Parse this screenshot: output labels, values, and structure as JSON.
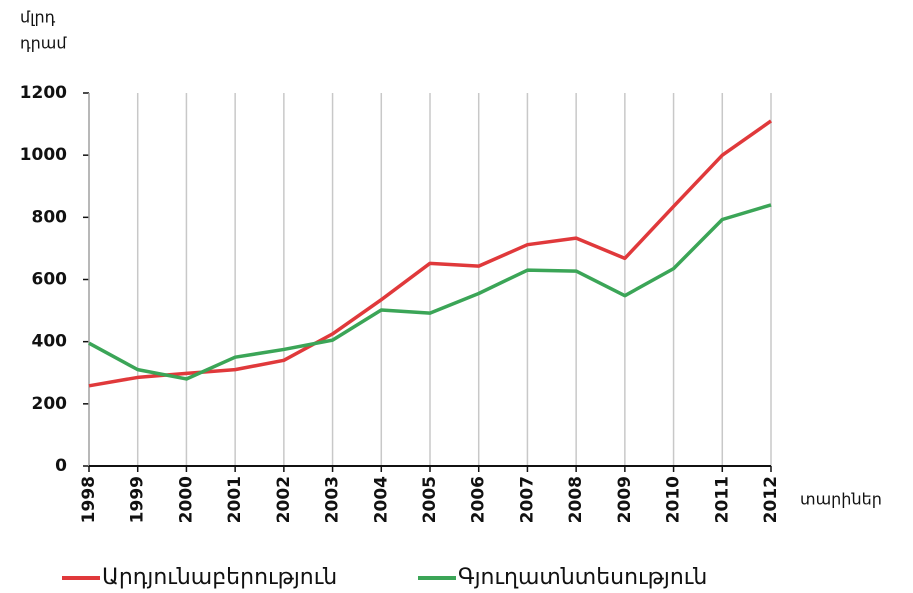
{
  "chart_data": {
    "type": "line",
    "y_label": [
      "մլրդ",
      "դրամ"
    ],
    "x_label": "տարիներ",
    "categories": [
      "1998",
      "1999",
      "2000",
      "2001",
      "2002",
      "2003",
      "2004",
      "2005",
      "2006",
      "2007",
      "2008",
      "2009",
      "2010",
      "2011",
      "2012"
    ],
    "series": [
      {
        "name": "Արդյունաբերություն",
        "color": "#e0393b",
        "values": [
          258,
          285,
          298,
          310,
          340,
          425,
          535,
          652,
          643,
          712,
          733,
          668,
          835,
          1000,
          1110
        ]
      },
      {
        "name": "Գյուղատնտեսություն",
        "color": "#3ba557",
        "values": [
          395,
          310,
          280,
          350,
          375,
          405,
          502,
          492,
          555,
          630,
          627,
          548,
          635,
          793,
          840
        ]
      }
    ],
    "ylim": [
      0,
      1200
    ],
    "yticks": [
      0,
      200,
      400,
      600,
      800,
      1000,
      1200
    ],
    "grid": "x",
    "legend": "bottom"
  }
}
